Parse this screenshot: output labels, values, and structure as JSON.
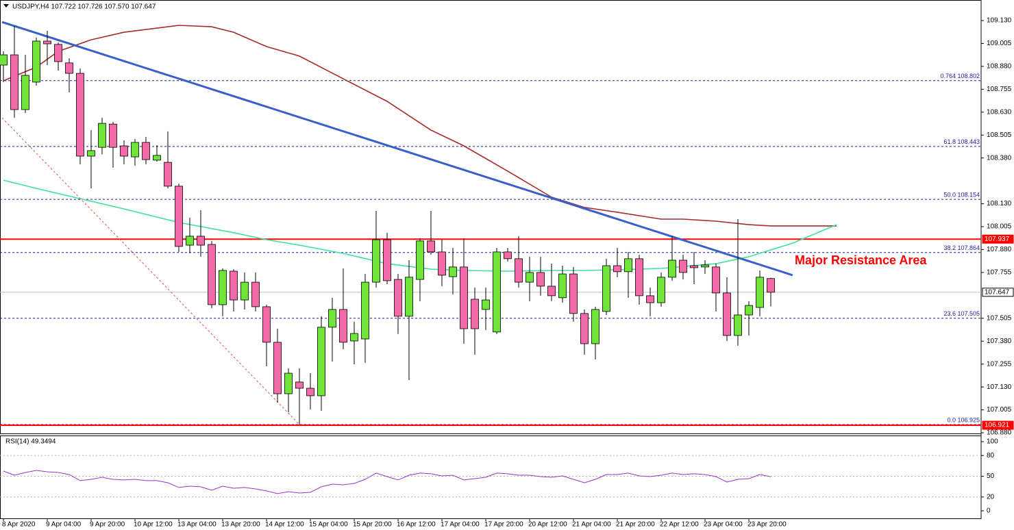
{
  "chart_data": [
    {
      "type": "candlestick",
      "header": "USDJPY,H4  107.722 107.726 107.570 107.647",
      "annotation": {
        "text": "Major Resistance Area",
        "color": "#ff0000"
      },
      "categories": [
        "8 Apr 2020",
        null,
        null,
        null,
        "9 Apr 04:00",
        null,
        null,
        null,
        "9 Apr 20:00",
        null,
        null,
        null,
        "10 Apr 12:00",
        null,
        null,
        null,
        "13 Apr 04:00",
        null,
        null,
        null,
        "13 Apr 20:00",
        null,
        null,
        null,
        "14 Apr 12:00",
        null,
        null,
        null,
        "15 Apr 04:00",
        null,
        null,
        null,
        "15 Apr 20:00",
        null,
        null,
        null,
        "16 Apr 12:00",
        null,
        null,
        null,
        "17 Apr 04:00",
        null,
        null,
        null,
        "17 Apr 20:00",
        null,
        null,
        null,
        "20 Apr 12:00",
        null,
        null,
        null,
        "21 Apr 04:00",
        null,
        null,
        null,
        "21 Apr 20:00",
        null,
        null,
        null,
        "22 Apr 12:00",
        null,
        null,
        null,
        "23 Apr 04:00",
        null,
        null,
        null,
        "23 Apr 20:00",
        null,
        null
      ],
      "open": [
        108.887,
        108.943,
        108.644,
        108.794,
        109.018,
        109.0,
        108.899,
        108.842,
        108.39,
        108.438,
        108.565,
        108.446,
        108.386,
        108.465,
        108.368,
        108.356,
        108.226,
        107.904,
        107.953,
        107.908,
        107.579,
        107.762,
        107.605,
        107.702,
        107.568,
        107.374,
        107.093,
        107.157,
        107.123,
        107.082,
        107.456,
        107.553,
        107.381,
        107.392,
        107.702,
        107.934,
        107.717,
        107.516,
        107.717,
        107.927,
        107.867,
        107.732,
        107.785,
        107.609,
        107.553,
        107.43,
        107.867,
        107.83,
        107.702,
        107.755,
        107.68,
        107.617,
        107.747,
        107.531,
        107.366,
        107.542,
        107.792,
        107.759,
        107.83,
        107.628,
        107.59,
        107.729,
        107.822,
        107.792,
        107.785,
        107.785,
        107.643,
        107.411,
        107.523,
        107.564,
        107.722
      ],
      "high": [
        108.962,
        109.1,
        108.943,
        109.037,
        109.074,
        109.01,
        108.924,
        108.868,
        108.532,
        108.6,
        108.577,
        108.476,
        108.484,
        108.495,
        108.45,
        108.525,
        108.24,
        108.054,
        108.095,
        107.927,
        107.777,
        107.773,
        107.755,
        107.755,
        107.579,
        107.448,
        107.232,
        107.232,
        107.205,
        107.516,
        107.617,
        107.777,
        107.486,
        107.747,
        108.091,
        107.972,
        107.747,
        107.822,
        107.942,
        108.091,
        107.934,
        107.889,
        107.942,
        107.673,
        107.673,
        107.889,
        107.889,
        107.953,
        107.841,
        107.841,
        107.803,
        107.792,
        107.785,
        107.553,
        107.568,
        107.83,
        107.889,
        107.867,
        107.852,
        107.673,
        107.755,
        107.953,
        107.852,
        107.867,
        107.822,
        107.803,
        107.729,
        108.046,
        107.598,
        107.766,
        107.726
      ],
      "low": [
        108.794,
        108.6,
        108.625,
        108.775,
        108.887,
        108.857,
        108.738,
        108.345,
        108.214,
        108.4,
        108.327,
        108.345,
        108.338,
        108.345,
        108.36,
        108.214,
        107.867,
        107.86,
        107.841,
        107.56,
        107.516,
        107.542,
        107.553,
        107.542,
        107.243,
        107.045,
        106.992,
        106.925,
        107.007,
        107.0,
        107.269,
        107.336,
        107.254,
        107.262,
        107.673,
        107.691,
        107.419,
        107.168,
        107.598,
        107.852,
        107.68,
        107.635,
        107.366,
        107.306,
        107.441,
        107.419,
        107.815,
        107.673,
        107.598,
        107.628,
        107.598,
        107.59,
        107.486,
        107.306,
        107.28,
        107.523,
        107.729,
        107.617,
        107.579,
        107.516,
        107.568,
        107.71,
        107.717,
        107.691,
        107.747,
        107.542,
        107.381,
        107.355,
        107.411,
        107.516,
        107.57
      ],
      "close": [
        108.943,
        108.644,
        108.831,
        109.018,
        109.003,
        108.906,
        108.842,
        108.39,
        108.42,
        108.569,
        108.438,
        108.39,
        108.465,
        108.371,
        108.394,
        108.226,
        107.897,
        107.953,
        107.904,
        107.579,
        107.766,
        107.605,
        107.702,
        107.568,
        107.374,
        107.093,
        107.205,
        107.123,
        107.082,
        107.456,
        107.553,
        107.374,
        107.422,
        107.702,
        107.934,
        107.71,
        107.516,
        107.729,
        107.927,
        107.867,
        107.74,
        107.785,
        107.448,
        107.448,
        107.605,
        107.867,
        107.83,
        107.702,
        107.755,
        107.68,
        107.628,
        107.747,
        107.531,
        107.366,
        107.553,
        107.792,
        107.759,
        107.83,
        107.628,
        107.59,
        107.729,
        107.822,
        107.755,
        107.781,
        107.796,
        107.643,
        107.411,
        107.523,
        107.575,
        107.729,
        107.647
      ],
      "up_color": "#6fe33a",
      "down_color": "#f26aa8",
      "ylim": [
        106.88,
        109.231
      ],
      "yticks": [
        {
          "value": 109.13,
          "label": "109.130"
        },
        109.005,
        {
          "value": 108.88,
          "label": "108.880"
        },
        108.755,
        {
          "value": 108.63,
          "label": "108.630"
        },
        108.505,
        {
          "value": 108.38,
          "label": "108.380"
        },
        {
          "value": 108.13,
          "label": "108.130"
        },
        108.005,
        {
          "value": 107.88,
          "label": "107.880"
        },
        107.755,
        107.505,
        {
          "value": 107.38,
          "label": "107.380"
        },
        107.255,
        {
          "value": 107.13,
          "label": "107.130"
        },
        107.005,
        {
          "value": 106.88,
          "label": "106.880"
        }
      ],
      "lines": [
        {
          "color": "#a52a2a",
          "style": "normal",
          "x": [
            0,
            3,
            5,
            8,
            11,
            16,
            19,
            21,
            24,
            27,
            31,
            35,
            39,
            42,
            46,
            50,
            53,
            56,
            60,
            62,
            65,
            68,
            70,
            76
          ],
          "values": [
            108.801,
            108.876,
            108.962,
            109.025,
            109.066,
            109.104,
            109.096,
            109.066,
            108.988,
            108.936,
            108.812,
            108.689,
            108.532,
            108.446,
            108.308,
            108.166,
            108.11,
            108.084,
            108.046,
            108.046,
            108.035,
            108.016,
            108.009,
            108.009
          ]
        },
        {
          "color": "#3ee0a0",
          "style": "normal",
          "x": [
            0,
            3,
            7,
            11,
            16,
            21,
            24,
            27,
            31,
            35,
            39,
            42,
            46,
            50,
            53,
            56,
            60,
            65,
            68,
            72,
            76
          ],
          "values": [
            108.259,
            108.214,
            108.158,
            108.102,
            108.028,
            107.972,
            107.934,
            107.904,
            107.859,
            107.803,
            107.773,
            107.766,
            107.762,
            107.766,
            107.766,
            107.77,
            107.777,
            107.803,
            107.841,
            107.915,
            108.016
          ]
        },
        {
          "color": "#3a5fcd",
          "style": "thick",
          "x": [
            -0.125,
            72
          ],
          "values": [
            109.122,
            107.74
          ]
        },
        {
          "color": "#e05050",
          "style": "dashed",
          "x": [
            -0.125,
            27
          ],
          "values": [
            108.599,
            106.925
          ]
        }
      ],
      "fib_levels": {
        "color": "#1c1ca0",
        "levels": [
          {
            "value": 108.802,
            "label": "0.764 108.802"
          },
          {
            "value": 108.443,
            "label": "61.8 108.443"
          },
          {
            "value": 108.154,
            "label": "50.0 108.154"
          },
          {
            "value": 107.864,
            "label": "38.2 107.864"
          },
          {
            "value": 107.505,
            "label": "23.6 107.505"
          },
          {
            "value": 106.925,
            "label": "0.0 106.925"
          }
        ]
      },
      "hlines": [
        {
          "value": 107.937,
          "color": "#ff0000",
          "tag_text_color": "#ffffff"
        },
        {
          "value": 106.921,
          "color": "#ff0000",
          "tag_text_color": "#ffffff"
        },
        {
          "value": 107.647,
          "color": "#c0c0c0",
          "tag_text_color": "#000000"
        }
      ]
    },
    {
      "type": "line",
      "title": "RSI(14) 49.3494",
      "color": "#9932cc",
      "values": [
        57.4,
        51.5,
        55.4,
        58.4,
        56.4,
        55.4,
        52.5,
        43.6,
        45.5,
        48.5,
        45.5,
        44.6,
        45.5,
        43.6,
        43.6,
        40.6,
        33.7,
        35.6,
        34.7,
        29.7,
        35.6,
        32.7,
        33.7,
        31.7,
        28.7,
        24.8,
        27.7,
        25.7,
        26.7,
        34.7,
        38.6,
        37.6,
        39.6,
        45.5,
        54.5,
        49.5,
        44.6,
        51.5,
        54.5,
        53.5,
        50.5,
        51.5,
        44.6,
        46.5,
        48.5,
        54.5,
        53.5,
        51.5,
        51.5,
        49.5,
        48.5,
        50.5,
        45.5,
        40.6,
        45.5,
        52.5,
        52.5,
        54.5,
        50.5,
        49.5,
        51.5,
        54.5,
        52.5,
        53.5,
        52.5,
        49.5,
        41.6,
        45.5,
        46.5,
        52.5,
        49.3
      ],
      "ylim": [
        -10.9,
        107.9
      ],
      "yticks": [
        100,
        80,
        50,
        20,
        0
      ]
    }
  ]
}
